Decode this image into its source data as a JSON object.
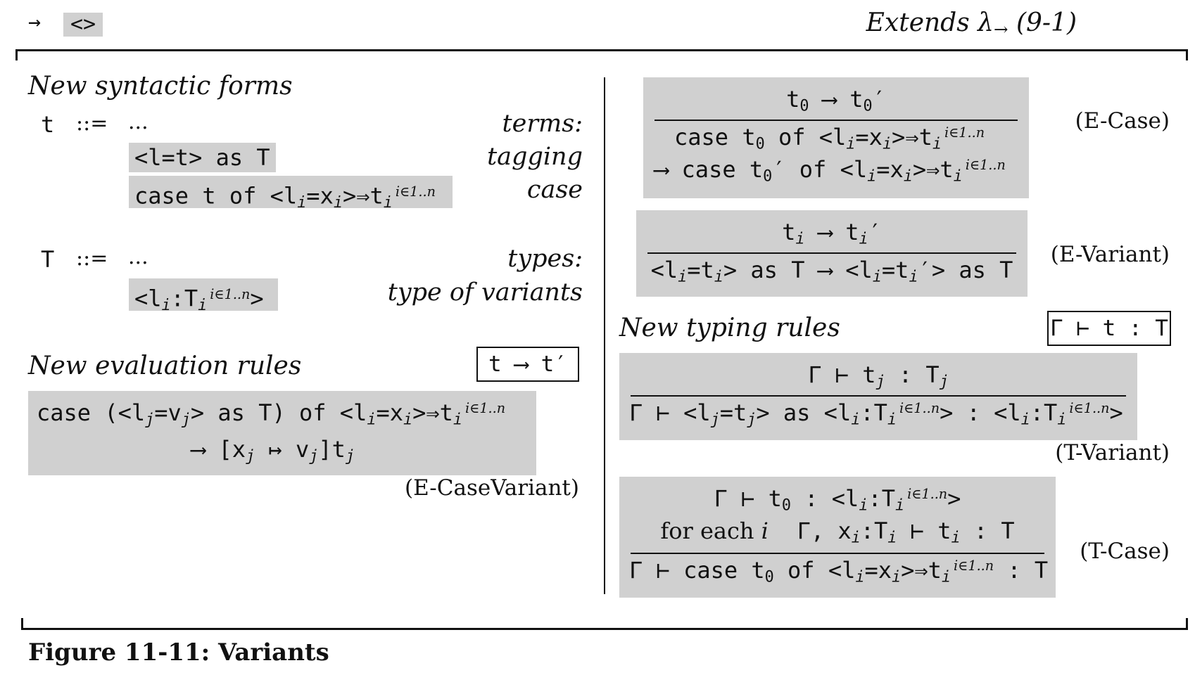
{
  "header": {
    "arrow": "→",
    "variant_tag": "<>",
    "extends": "Extends λ",
    "extends_sub": "→",
    "extends_ref": "(9-1)"
  },
  "syntax": {
    "heading": "New syntactic forms",
    "terms": {
      "symbol": "t",
      "def": "::=",
      "dots": "...",
      "desc": "terms:",
      "forms": [
        {
          "mono": "<l=t> as T",
          "desc": "tagging"
        },
        {
          "desc": "case"
        }
      ]
    },
    "types": {
      "symbol": "T",
      "def": "::=",
      "dots": "...",
      "desc": "types:",
      "forms": [
        {
          "desc": "type of variants"
        }
      ]
    }
  },
  "eval": {
    "heading": "New evaluation rules",
    "judgment": "t ⟶ t′",
    "case_variant_label": "(E-CaseVariant)",
    "e_case_label": "(E-Case)",
    "e_variant_label": "(E-Variant)"
  },
  "typing": {
    "heading": "New typing rules",
    "judgment": "Γ ⊢ t : T",
    "t_variant_label": "(T-Variant)",
    "t_case_label": "(T-Case)",
    "for_each": "for each"
  },
  "caption": "Figure 11-11: Variants",
  "range": "i∈1..n"
}
